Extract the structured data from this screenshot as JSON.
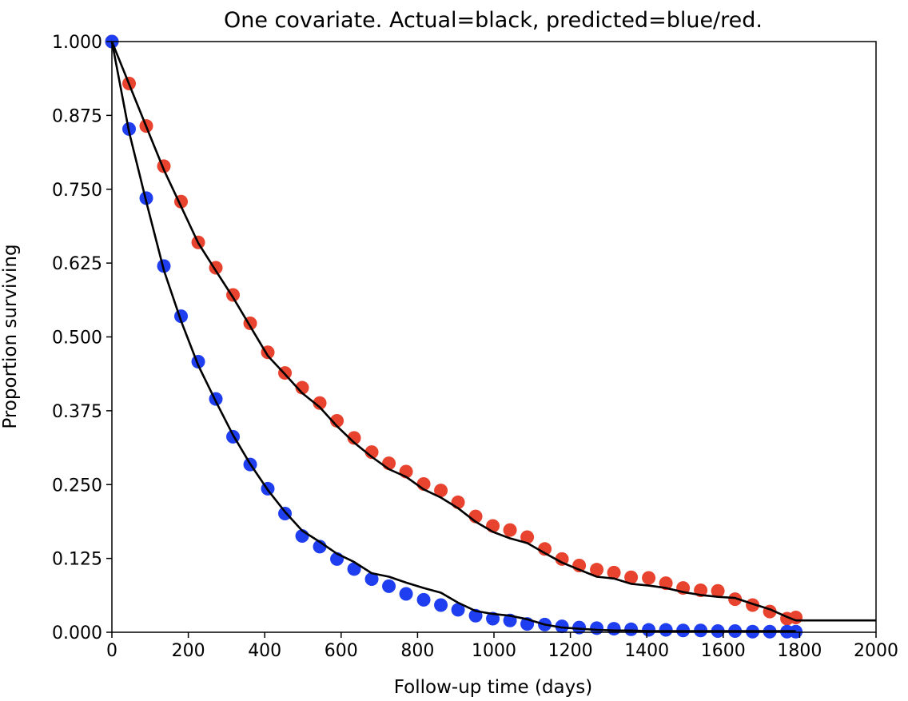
{
  "chart_data": {
    "type": "line",
    "title": "One covariate. Actual=black, predicted=blue/red.",
    "xlabel": "Follow-up time (days)",
    "ylabel": "Proportion surviving",
    "xlim": [
      0,
      2000
    ],
    "ylim": [
      0,
      1.0
    ],
    "xticks": [
      "0",
      "200",
      "400",
      "600",
      "800",
      "1000",
      "1200",
      "1400",
      "1600",
      "1800",
      "2000"
    ],
    "yticks": [
      "0.000",
      "0.125",
      "0.250",
      "0.375",
      "0.500",
      "0.625",
      "0.750",
      "0.875",
      "1.000"
    ],
    "grid": false,
    "legend": "none",
    "colors": {
      "actual": "#000000",
      "predicted_red": "#e8432e",
      "predicted_blue": "#1f3ef0"
    },
    "series": [
      {
        "kind": "scatter",
        "color": "#e8432e",
        "x": [
          0,
          45,
          90,
          136,
          181,
          226,
          272,
          317,
          362,
          408,
          453,
          498,
          544,
          589,
          634,
          680,
          725,
          770,
          816,
          861,
          906,
          952,
          997,
          1042,
          1087,
          1133,
          1178,
          1223,
          1269,
          1314,
          1359,
          1405,
          1450,
          1495,
          1541,
          1586,
          1631,
          1677,
          1722,
          1767,
          1790
        ],
        "y": [
          1.0,
          0.929,
          0.857,
          0.789,
          0.729,
          0.66,
          0.617,
          0.571,
          0.523,
          0.474,
          0.439,
          0.414,
          0.388,
          0.358,
          0.329,
          0.305,
          0.286,
          0.272,
          0.251,
          0.24,
          0.22,
          0.196,
          0.18,
          0.173,
          0.161,
          0.141,
          0.124,
          0.113,
          0.106,
          0.101,
          0.093,
          0.092,
          0.083,
          0.075,
          0.071,
          0.07,
          0.056,
          0.046,
          0.035,
          0.023,
          0.025
        ]
      },
      {
        "kind": "scatter",
        "color": "#1f3ef0",
        "x": [
          0,
          45,
          90,
          136,
          181,
          226,
          272,
          317,
          362,
          408,
          453,
          498,
          544,
          589,
          634,
          680,
          725,
          770,
          816,
          861,
          906,
          952,
          997,
          1042,
          1087,
          1133,
          1178,
          1223,
          1269,
          1314,
          1359,
          1405,
          1450,
          1495,
          1541,
          1586,
          1631,
          1677,
          1722,
          1767,
          1790
        ],
        "y": [
          1.0,
          0.852,
          0.735,
          0.62,
          0.535,
          0.458,
          0.395,
          0.331,
          0.284,
          0.243,
          0.201,
          0.163,
          0.145,
          0.124,
          0.107,
          0.09,
          0.078,
          0.065,
          0.055,
          0.046,
          0.038,
          0.028,
          0.023,
          0.02,
          0.014,
          0.013,
          0.01,
          0.008,
          0.007,
          0.006,
          0.005,
          0.004,
          0.004,
          0.003,
          0.003,
          0.002,
          0.002,
          0.001,
          0.001,
          0.001,
          0.001
        ]
      },
      {
        "kind": "line",
        "color": "#000000",
        "x": [
          0,
          45,
          90,
          136,
          181,
          226,
          272,
          317,
          362,
          408,
          453,
          498,
          544,
          589,
          634,
          680,
          725,
          770,
          816,
          861,
          906,
          952,
          997,
          1042,
          1087,
          1133,
          1178,
          1223,
          1269,
          1314,
          1359,
          1405,
          1450,
          1495,
          1541,
          1586,
          1631,
          1677,
          1722,
          1767,
          1790,
          2000
        ],
        "y": [
          1.0,
          0.928,
          0.856,
          0.783,
          0.721,
          0.659,
          0.612,
          0.567,
          0.518,
          0.468,
          0.437,
          0.405,
          0.381,
          0.349,
          0.321,
          0.297,
          0.276,
          0.263,
          0.242,
          0.228,
          0.21,
          0.187,
          0.17,
          0.159,
          0.151,
          0.134,
          0.118,
          0.106,
          0.094,
          0.091,
          0.082,
          0.079,
          0.075,
          0.068,
          0.063,
          0.06,
          0.058,
          0.048,
          0.039,
          0.026,
          0.02,
          0.02
        ]
      },
      {
        "kind": "line",
        "color": "#000000",
        "x": [
          0,
          45,
          90,
          136,
          181,
          226,
          272,
          317,
          362,
          408,
          453,
          498,
          544,
          589,
          634,
          680,
          725,
          770,
          816,
          861,
          906,
          952,
          997,
          1042,
          1087,
          1133,
          1178,
          1223,
          1269,
          1314,
          1359,
          1405,
          1450,
          1495,
          1541,
          1586,
          1631,
          1677,
          1722,
          1767,
          1790
        ],
        "y": [
          1.0,
          0.847,
          0.729,
          0.613,
          0.527,
          0.452,
          0.391,
          0.334,
          0.285,
          0.241,
          0.204,
          0.172,
          0.153,
          0.133,
          0.119,
          0.1,
          0.094,
          0.084,
          0.075,
          0.067,
          0.05,
          0.036,
          0.031,
          0.028,
          0.022,
          0.013,
          0.008,
          0.006,
          0.004,
          0.003,
          0.003,
          0.002,
          0.002,
          0.002,
          0.002,
          0.002,
          0.002,
          0.002,
          0.002,
          0.002,
          0.002
        ]
      }
    ]
  }
}
